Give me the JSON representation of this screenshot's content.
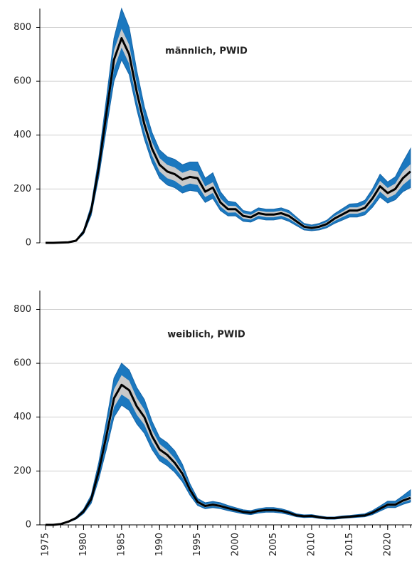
{
  "chart_data": [
    {
      "type": "band-line",
      "annotation": "männlich, PWID",
      "x": [
        1975,
        1976,
        1977,
        1978,
        1979,
        1980,
        1981,
        1982,
        1983,
        1984,
        1985,
        1986,
        1987,
        1988,
        1989,
        1990,
        1991,
        1992,
        1993,
        1994,
        1995,
        1996,
        1997,
        1998,
        1999,
        2000,
        2001,
        2002,
        2003,
        2004,
        2005,
        2006,
        2007,
        2008,
        2009,
        2010,
        2011,
        2012,
        2013,
        2014,
        2015,
        2016,
        2017,
        2018,
        2019,
        2020,
        2021,
        2022,
        2023
      ],
      "xlim": [
        1974.25,
        2023.2
      ],
      "ylim": [
        0,
        870
      ],
      "yticks": [
        0,
        200,
        400,
        600,
        800
      ],
      "grid": true,
      "bands": [
        {
          "color": "#1b78bf",
          "lower": [
            0,
            0,
            1,
            2,
            6,
            33,
            102,
            245,
            425,
            600,
            680,
            625,
            495,
            385,
            300,
            240,
            215,
            205,
            185,
            195,
            190,
            150,
            165,
            120,
            100,
            100,
            80,
            77,
            90,
            85,
            85,
            90,
            80,
            64,
            48,
            45,
            48,
            56,
            72,
            84,
            96,
            96,
            104,
            132,
            170,
            148,
            160,
            190,
            205
          ],
          "upper": [
            0,
            0,
            1,
            3,
            10,
            47,
            138,
            315,
            535,
            760,
            870,
            800,
            640,
            505,
            410,
            345,
            320,
            310,
            290,
            300,
            300,
            240,
            260,
            190,
            155,
            150,
            120,
            114,
            130,
            125,
            125,
            130,
            120,
            96,
            72,
            66,
            72,
            84,
            108,
            126,
            144,
            146,
            158,
            200,
            255,
            226,
            245,
            300,
            350
          ]
        },
        {
          "color": "#c9c9c9",
          "lower": [
            0,
            0,
            1,
            2,
            7,
            37,
            112,
            265,
            455,
            645,
            725,
            665,
            530,
            415,
            325,
            265,
            240,
            230,
            210,
            220,
            215,
            170,
            185,
            135,
            112,
            113,
            90,
            86,
            100,
            95,
            95,
            100,
            90,
            72,
            54,
            50,
            54,
            63,
            81,
            95,
            108,
            108,
            117,
            148,
            190,
            166,
            180,
            215,
            238
          ],
          "upper": [
            0,
            0,
            1,
            2,
            9,
            43,
            128,
            295,
            505,
            715,
            795,
            735,
            590,
            465,
            375,
            315,
            290,
            280,
            260,
            270,
            265,
            210,
            225,
            165,
            138,
            137,
            110,
            104,
            120,
            115,
            115,
            120,
            110,
            88,
            66,
            60,
            66,
            77,
            99,
            115,
            132,
            132,
            143,
            182,
            230,
            204,
            220,
            265,
            292
          ]
        }
      ],
      "series": [
        {
          "color": "#000000",
          "values": [
            0,
            0,
            1,
            2,
            8,
            40,
            120,
            280,
            480,
            680,
            760,
            700,
            560,
            440,
            350,
            290,
            265,
            255,
            235,
            245,
            240,
            190,
            205,
            150,
            125,
            125,
            100,
            95,
            110,
            105,
            105,
            110,
            100,
            80,
            60,
            55,
            60,
            70,
            90,
            105,
            120,
            120,
            130,
            165,
            210,
            185,
            200,
            240,
            265
          ]
        }
      ]
    },
    {
      "type": "band-line",
      "annotation": "weiblich, PWID",
      "x": [
        1975,
        1976,
        1977,
        1978,
        1979,
        1980,
        1981,
        1982,
        1983,
        1984,
        1985,
        1986,
        1987,
        1988,
        1989,
        1990,
        1991,
        1992,
        1993,
        1994,
        1995,
        1996,
        1997,
        1998,
        1999,
        2000,
        2001,
        2002,
        2003,
        2004,
        2005,
        2006,
        2007,
        2008,
        2009,
        2010,
        2011,
        2012,
        2013,
        2014,
        2015,
        2016,
        2017,
        2018,
        2019,
        2020,
        2021,
        2022,
        2023
      ],
      "xlim": [
        1974.25,
        2023.2
      ],
      "xticks": [
        1975,
        1980,
        1985,
        1990,
        1995,
        2000,
        2005,
        2010,
        2015,
        2020
      ],
      "ylim": [
        0,
        870
      ],
      "yticks": [
        0,
        200,
        400,
        600,
        800
      ],
      "grid": true,
      "bands": [
        {
          "color": "#1b78bf",
          "lower": [
            0,
            0,
            2,
            10,
            21,
            42,
            80,
            170,
            280,
            400,
            445,
            425,
            375,
            340,
            280,
            238,
            220,
            195,
            160,
            110,
            72,
            60,
            64,
            60,
            53,
            47,
            41,
            38,
            44,
            47,
            47,
            44,
            38,
            30,
            27,
            28,
            24,
            21,
            21,
            24,
            26,
            28,
            30,
            38,
            51,
            64,
            64,
            76,
            85
          ],
          "upper": [
            0,
            0,
            4,
            14,
            29,
            58,
            110,
            232,
            385,
            545,
            600,
            575,
            510,
            465,
            385,
            325,
            305,
            275,
            225,
            152,
            98,
            82,
            87,
            82,
            72,
            64,
            56,
            53,
            60,
            64,
            64,
            60,
            52,
            41,
            37,
            38,
            33,
            29,
            29,
            33,
            35,
            38,
            41,
            53,
            70,
            88,
            88,
            108,
            130
          ]
        },
        {
          "color": "#c9c9c9",
          "lower": [
            0,
            0,
            2,
            11,
            23,
            46,
            88,
            186,
            307,
            437,
            484,
            465,
            409,
            372,
            307,
            260,
            242,
            214,
            177,
            121,
            79,
            65,
            70,
            65,
            58,
            51,
            45,
            42,
            48,
            51,
            51,
            48,
            42,
            33,
            30,
            31,
            26,
            23,
            23,
            26,
            28,
            31,
            33,
            42,
            56,
            70,
            70,
            84,
            93
          ],
          "upper": [
            0,
            0,
            4,
            13,
            27,
            54,
            102,
            214,
            353,
            503,
            556,
            535,
            471,
            428,
            353,
            300,
            278,
            246,
            203,
            139,
            91,
            75,
            80,
            75,
            66,
            59,
            51,
            48,
            56,
            59,
            59,
            56,
            48,
            37,
            34,
            35,
            30,
            27,
            27,
            30,
            32,
            35,
            37,
            48,
            64,
            80,
            80,
            96,
            107
          ]
        }
      ],
      "series": [
        {
          "color": "#000000",
          "values": [
            0,
            0,
            3,
            12,
            25,
            50,
            95,
            200,
            330,
            470,
            520,
            500,
            440,
            400,
            330,
            280,
            260,
            230,
            190,
            130,
            85,
            70,
            75,
            70,
            62,
            55,
            48,
            45,
            52,
            55,
            55,
            52,
            45,
            35,
            32,
            33,
            28,
            25,
            25,
            28,
            30,
            33,
            35,
            45,
            60,
            75,
            75,
            90,
            100
          ]
        }
      ]
    }
  ]
}
